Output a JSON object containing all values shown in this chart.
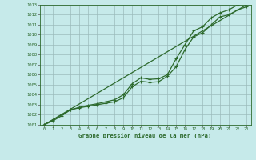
{
  "title": "Graphe pression niveau de la mer (hPa)",
  "background_color": "#c6eaea",
  "grid_color": "#9bbcbc",
  "line_color": "#2d6a2d",
  "marker_color": "#2d6a2d",
  "xlim": [
    -0.5,
    23.5
  ],
  "ylim": [
    1001,
    1013
  ],
  "xticks": [
    0,
    1,
    2,
    3,
    4,
    5,
    6,
    7,
    8,
    9,
    10,
    11,
    12,
    13,
    14,
    15,
    16,
    17,
    18,
    19,
    20,
    21,
    22,
    23
  ],
  "yticks": [
    1001,
    1002,
    1003,
    1004,
    1005,
    1006,
    1007,
    1008,
    1009,
    1010,
    1011,
    1012,
    1013
  ],
  "trend": {
    "x": [
      0,
      23
    ],
    "y": [
      1001.0,
      1013.0
    ]
  },
  "series_lower": {
    "x": [
      0,
      1,
      2,
      3,
      4,
      5,
      6,
      7,
      8,
      9,
      10,
      11,
      12,
      13,
      14,
      15,
      16,
      17,
      18,
      19,
      20,
      21,
      22,
      23
    ],
    "y": [
      1001.0,
      1001.4,
      1001.9,
      1002.5,
      1002.7,
      1002.85,
      1003.0,
      1003.15,
      1003.3,
      1003.7,
      1004.8,
      1005.35,
      1005.25,
      1005.3,
      1005.85,
      1006.8,
      1008.5,
      1009.8,
      1010.2,
      1011.0,
      1011.8,
      1012.0,
      1012.5,
      1012.8
    ]
  },
  "series_upper": {
    "x": [
      0,
      1,
      2,
      3,
      4,
      5,
      6,
      7,
      8,
      9,
      10,
      11,
      12,
      13,
      14,
      15,
      16,
      17,
      18,
      19,
      20,
      21,
      22,
      23
    ],
    "y": [
      1001.0,
      1001.5,
      1002.0,
      1002.5,
      1002.75,
      1002.95,
      1003.1,
      1003.3,
      1003.5,
      1004.0,
      1005.1,
      1005.7,
      1005.55,
      1005.6,
      1006.0,
      1007.6,
      1009.0,
      1010.4,
      1010.8,
      1011.7,
      1012.2,
      1012.5,
      1013.0,
      1013.2
    ]
  }
}
